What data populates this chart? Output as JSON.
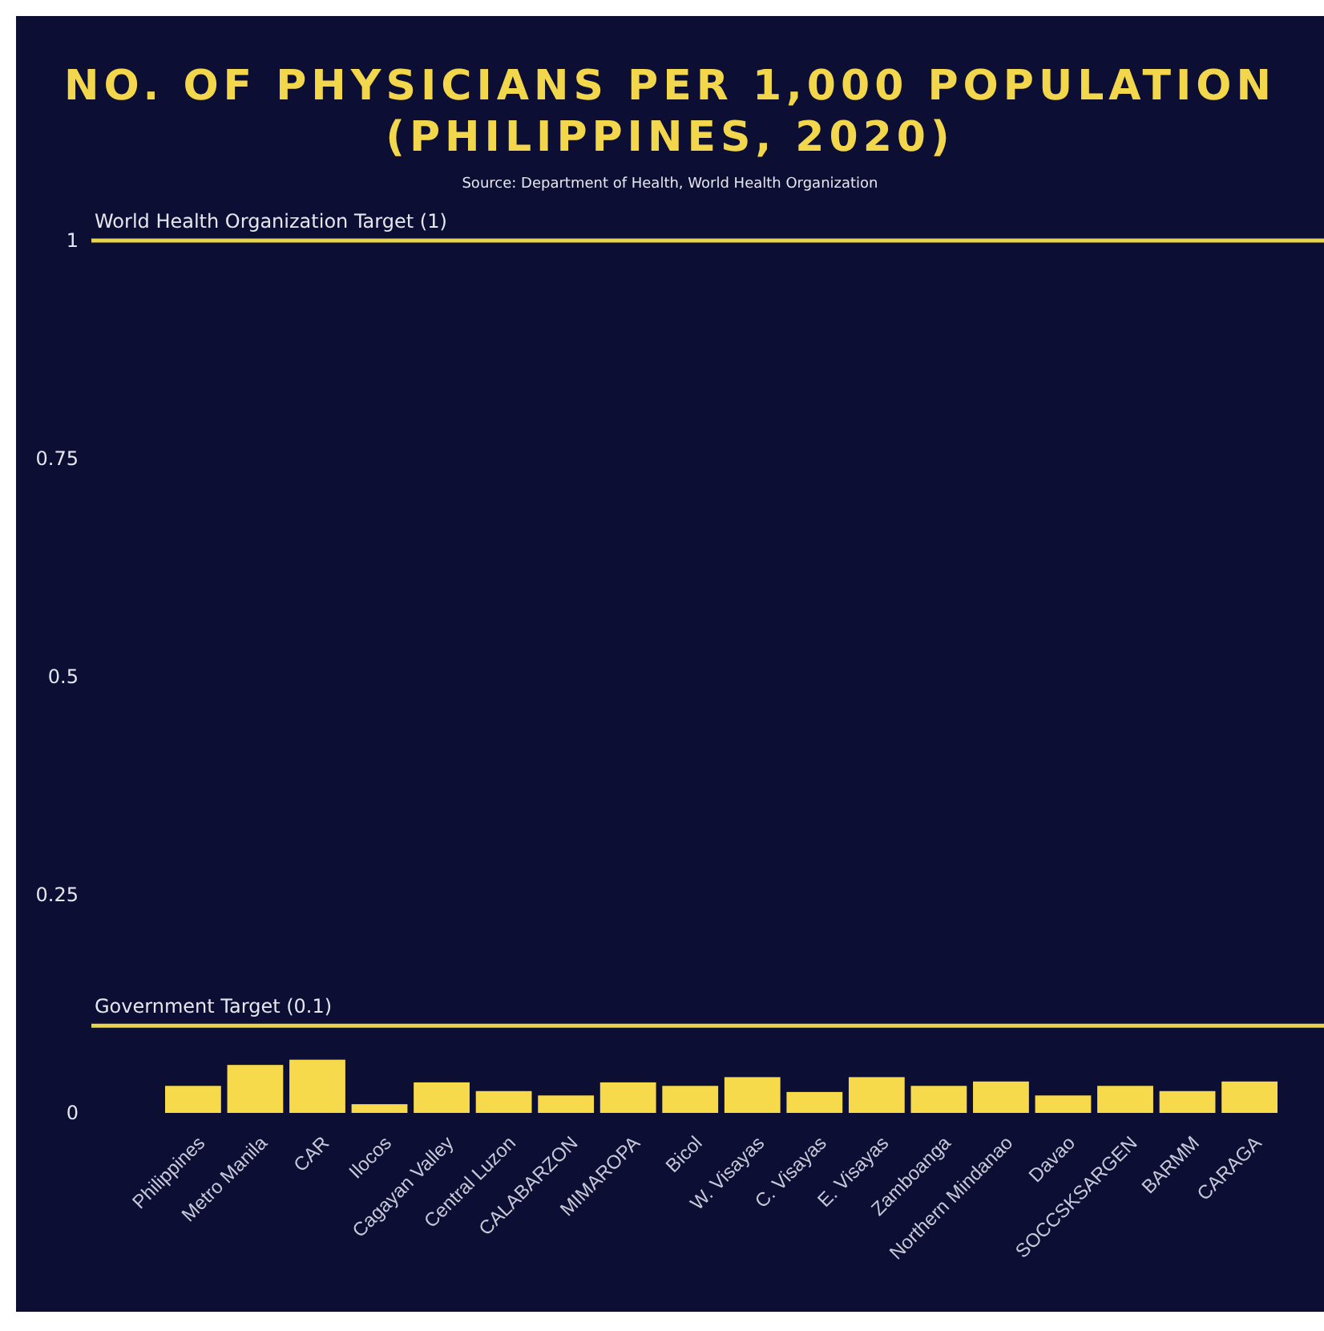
{
  "chart_data": {
    "type": "bar",
    "title": "NO. OF PHYSICIANS PER 1,000 POPULATION (PHILIPPINES, 2020)",
    "annotations": [
      "Source: Department of Health, World Health Organization"
    ],
    "categories": [
      "Philippines",
      "Metro Manila",
      "CAR",
      "Ilocos",
      "Cagayan Valley",
      "Central Luzon",
      "CALABARZON",
      "MIMAROPA",
      "Bicol",
      "W. Visayas",
      "C. Visayas",
      "E. Visayas",
      "Zamboanga",
      "Northern Mindanao",
      "Davao",
      "SOCCSKSARGEN",
      "BARMM",
      "CARAGA"
    ],
    "values": [
      0.031,
      0.055,
      0.061,
      0.01,
      0.035,
      0.025,
      0.02,
      0.035,
      0.031,
      0.041,
      0.024,
      0.041,
      0.031,
      0.036,
      0.02,
      0.031,
      0.025,
      0.036
    ],
    "color": "#f7d94c",
    "ylim": [
      0,
      1
    ],
    "yticks": [
      0,
      0.25,
      0.5,
      0.75,
      1
    ],
    "grid": false,
    "ref_lines": [
      {
        "axis": "y",
        "value": 1,
        "label": "World Health Organization Target (1)",
        "color": "#e8d44d"
      },
      {
        "axis": "y",
        "value": 0.1,
        "label": "Government Target (0.1)",
        "color": "#e8d44d"
      }
    ]
  }
}
